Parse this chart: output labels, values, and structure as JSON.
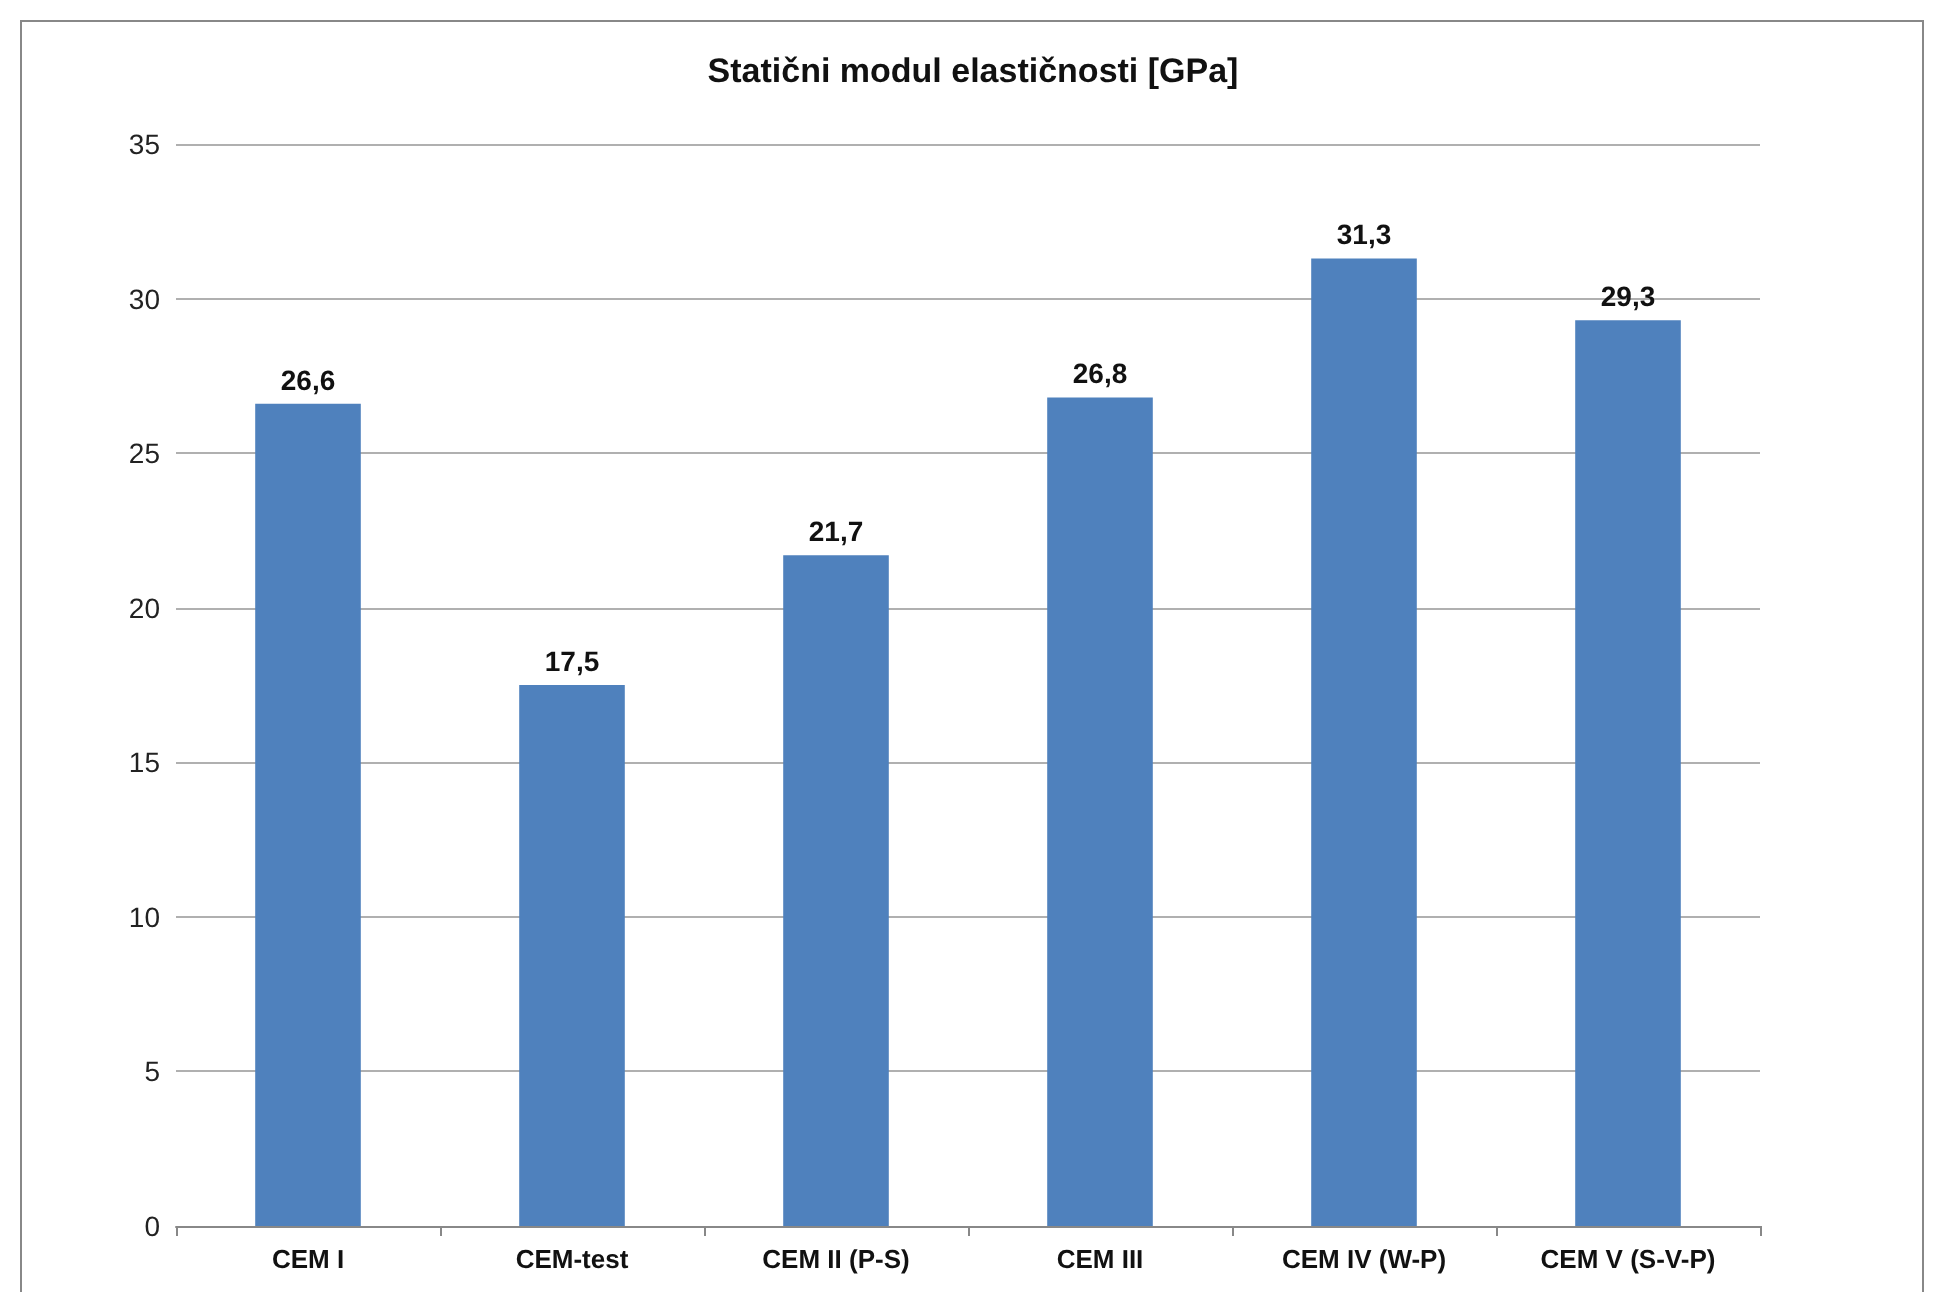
{
  "chart_data": {
    "type": "bar",
    "title": "Statični modul elastičnosti [GPa]",
    "categories": [
      "CEM I",
      "CEM-test",
      "CEM II (P-S)",
      "CEM III",
      "CEM IV (W-P)",
      "CEM V (S-V-P)"
    ],
    "values": [
      26.6,
      17.5,
      21.7,
      26.8,
      31.3,
      29.3
    ],
    "value_labels": [
      "26,6",
      "17,5",
      "21,7",
      "26,8",
      "31,3",
      "29,3"
    ],
    "color": "#4f81bd",
    "ylim": [
      0,
      35
    ],
    "yticks": [
      0,
      5,
      10,
      15,
      20,
      25,
      30,
      35
    ],
    "grid": "y"
  }
}
